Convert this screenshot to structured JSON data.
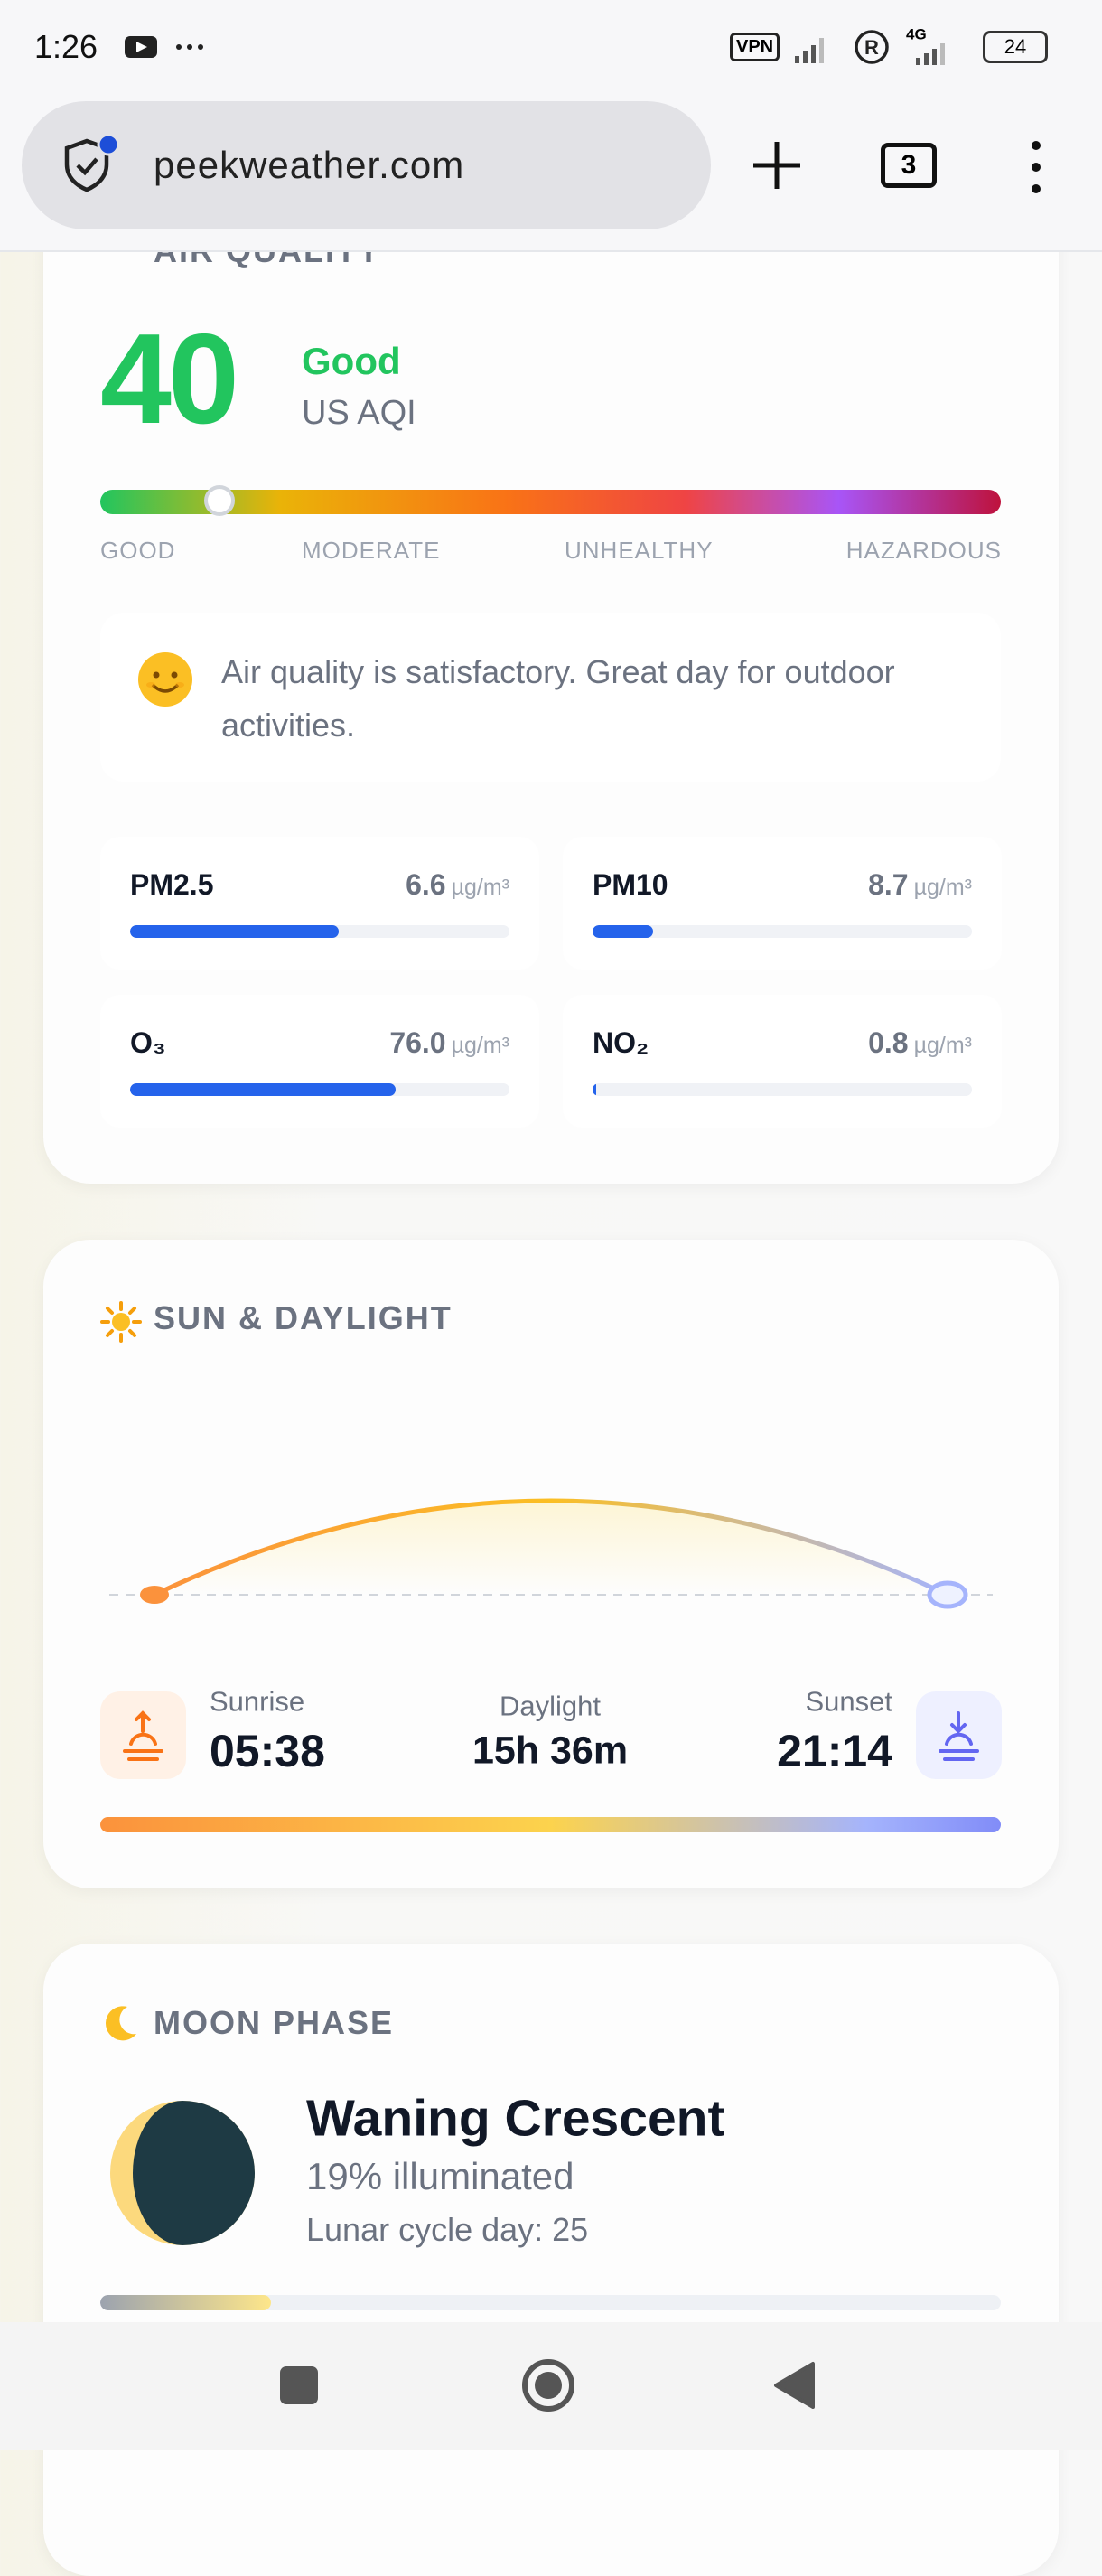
{
  "status_bar": {
    "time": "1:26",
    "vpn": "VPN",
    "network": "4G",
    "battery": "24"
  },
  "browser": {
    "url": "peekweather.com",
    "tab_count": "3"
  },
  "air_quality": {
    "title": "AIR QUALITY",
    "aqi": "40",
    "level": "Good",
    "scale": "US AQI",
    "scale_labels": [
      "GOOD",
      "MODERATE",
      "UNHEALTHY",
      "HAZARDOUS"
    ],
    "message": "Air quality is satisfactory. Great day for outdoor activities.",
    "pollutants": [
      {
        "name": "PM2.5",
        "value": "6.6",
        "unit": "µg/m³"
      },
      {
        "name": "PM10",
        "value": "8.7",
        "unit": "µg/m³"
      },
      {
        "name": "O₃",
        "value": "76.0",
        "unit": "µg/m³"
      },
      {
        "name": "NO₂",
        "value": "0.8",
        "unit": "µg/m³"
      }
    ]
  },
  "sun": {
    "title": "SUN & DAYLIGHT",
    "sunrise_label": "Sunrise",
    "sunrise": "05:38",
    "daylight_label": "Daylight",
    "daylight": "15h 36m",
    "sunset_label": "Sunset",
    "sunset": "21:14"
  },
  "moon": {
    "title": "MOON PHASE",
    "phase": "Waning Crescent",
    "illumination": "19% illuminated",
    "cycle_day": "Lunar cycle day: 25"
  }
}
